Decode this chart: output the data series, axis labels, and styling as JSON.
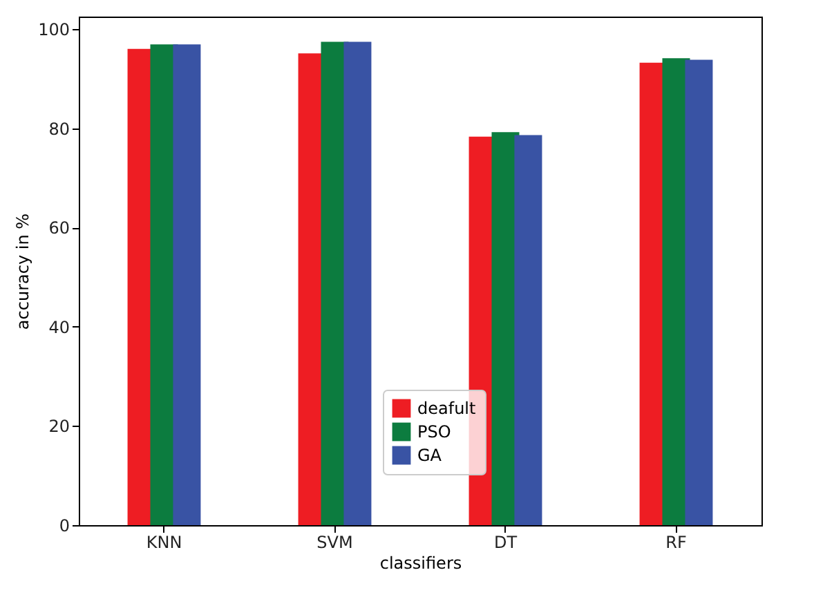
{
  "chart_data": {
    "type": "bar",
    "xlabel": "classifiers",
    "ylabel": "accuracy in %",
    "categories": [
      "KNN",
      "SVM",
      "DT",
      "RF"
    ],
    "series": [
      {
        "name": "deafult",
        "color": "#ee1d23",
        "values": [
          96.0,
          95.1,
          78.3,
          93.2
        ]
      },
      {
        "name": "PSO",
        "color": "#0c7c3f",
        "values": [
          96.9,
          97.4,
          79.2,
          94.1
        ]
      },
      {
        "name": "GA",
        "color": "#3953a4",
        "values": [
          96.9,
          97.4,
          78.6,
          93.8
        ]
      }
    ],
    "ylim": [
      0,
      102.5
    ],
    "yticks": [
      0,
      20,
      40,
      60,
      80,
      100
    ],
    "grid": false,
    "legend": "bottom"
  }
}
